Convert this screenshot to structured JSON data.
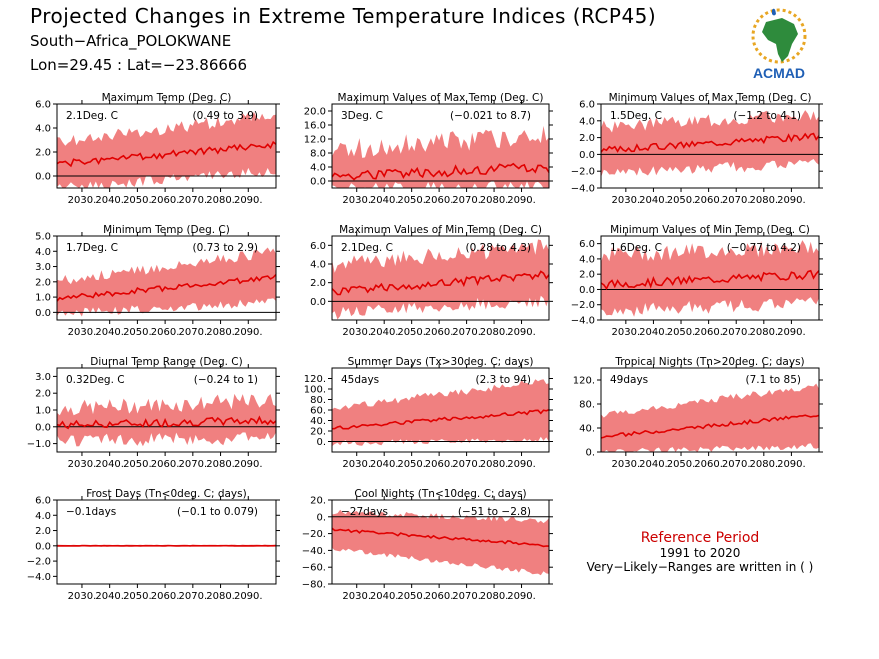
{
  "header": {
    "title": "Projected Changes in Extreme Temperature Indices (RCP45)",
    "region": "South−Africa_POLOKWANE",
    "coords": "Lon=29.45 : Lat=−23.86666",
    "logo_text": "ACMAD"
  },
  "reference": {
    "title": "Reference Period",
    "period": "1991 to 2020",
    "note": "Very−Likely−Ranges are written in ( )"
  },
  "colors": {
    "band": "#f08080",
    "line": "#e00000",
    "zero": "#000000"
  },
  "chart_data": [
    {
      "type": "area",
      "title": "Maximum Temp (Deg. C)",
      "annotation": "2.1Deg. C",
      "range": "(0.49 to 3.9)",
      "ylim": [
        -1,
        6
      ],
      "yticks": [
        0,
        2,
        4,
        6
      ],
      "ticklabels": [
        "0.0",
        "2.0",
        "4.0",
        "6.0"
      ],
      "x_start": 2021,
      "x_end": 2100,
      "xticks": [
        2030,
        2040,
        2050,
        2060,
        2070,
        2080,
        2090
      ],
      "trend": [
        1.0,
        2.6
      ],
      "low": [
        -0.6,
        0.9
      ],
      "high": [
        2.2,
        4.6
      ],
      "amp": 0.9,
      "seed": 1
    },
    {
      "type": "area",
      "title": "Maximum Values of Max Temp (Deg. C)",
      "annotation": "3Deg. C",
      "range": "(−0.021 to 8.7)",
      "ylim": [
        -2,
        22
      ],
      "yticks": [
        0,
        4,
        8,
        12,
        16,
        20
      ],
      "ticklabels": [
        "0.0",
        "4.0",
        "8.0",
        "12.0",
        "16.0",
        "20.0"
      ],
      "x_start": 2021,
      "x_end": 2100,
      "xticks": [
        2030,
        2040,
        2050,
        2060,
        2070,
        2080,
        2090
      ],
      "trend": [
        1.5,
        3.8
      ],
      "low": [
        -0.5,
        0.0
      ],
      "high": [
        6,
        10
      ],
      "amp": 5,
      "seed": 2
    },
    {
      "type": "area",
      "title": "Minimum Values of Max Temp (Deg. C)",
      "annotation": "1.5Deg. C",
      "range": "(−1.2 to 4.1)",
      "ylim": [
        -4,
        6
      ],
      "yticks": [
        -4,
        -2,
        0,
        2,
        4,
        6
      ],
      "ticklabels": [
        "−4.0",
        "−2.0",
        "0.0",
        "2.0",
        "4.0",
        "6.0"
      ],
      "x_start": 2021,
      "x_end": 2100,
      "xticks": [
        2030,
        2040,
        2050,
        2060,
        2070,
        2080,
        2090
      ],
      "trend": [
        0.5,
        2.2
      ],
      "low": [
        -1.5,
        -0.5
      ],
      "high": [
        2.5,
        4.0
      ],
      "amp": 1.3,
      "seed": 3
    },
    {
      "type": "area",
      "title": "Minimum Temp (Deg. C)",
      "annotation": "1.7Deg. C",
      "range": "(0.73 to 2.9)",
      "ylim": [
        -0.5,
        5
      ],
      "yticks": [
        0,
        1,
        2,
        3,
        4,
        5
      ],
      "ticklabels": [
        "0.0",
        "1.0",
        "2.0",
        "3.0",
        "4.0",
        "5.0"
      ],
      "x_start": 2021,
      "x_end": 2100,
      "xticks": [
        2030,
        2040,
        2050,
        2060,
        2070,
        2080,
        2090
      ],
      "trend": [
        0.9,
        2.3
      ],
      "low": [
        0.2,
        1.0
      ],
      "high": [
        1.7,
        3.6
      ],
      "amp": 0.6,
      "seed": 4
    },
    {
      "type": "area",
      "title": "Maximum Values of Min Temp (Deg. C)",
      "annotation": "2.1Deg. C",
      "range": "(0.28 to 4.3)",
      "ylim": [
        -2,
        7
      ],
      "yticks": [
        0,
        2,
        4,
        6
      ],
      "ticklabels": [
        "0.0",
        "2.0",
        "4.0",
        "6.0"
      ],
      "x_start": 2021,
      "x_end": 2100,
      "xticks": [
        2030,
        2040,
        2050,
        2060,
        2070,
        2080,
        2090
      ],
      "trend": [
        1.0,
        2.9
      ],
      "low": [
        -0.5,
        0.8
      ],
      "high": [
        3,
        5
      ],
      "amp": 1.5,
      "seed": 5
    },
    {
      "type": "area",
      "title": "Minimum Values of Min Temp (Deg. C)",
      "annotation": "1.6Deg. C",
      "range": "(−0.77 to 4.2)",
      "ylim": [
        -4,
        7
      ],
      "yticks": [
        -4,
        -2,
        0,
        2,
        4,
        6
      ],
      "ticklabels": [
        "−4.0",
        "−2.0",
        "0.0",
        "2.0",
        "4.0",
        "6.0"
      ],
      "x_start": 2021,
      "x_end": 2100,
      "xticks": [
        2030,
        2040,
        2050,
        2060,
        2070,
        2080,
        2090
      ],
      "trend": [
        0.6,
        2.0
      ],
      "low": [
        -2.0,
        -0.8
      ],
      "high": [
        3.5,
        4.5
      ],
      "amp": 1.8,
      "seed": 6
    },
    {
      "type": "area",
      "title": "Diurnal Temp Range (Deg. C)",
      "annotation": "0.32Deg. C",
      "range": "(−0.24 to 1)",
      "ylim": [
        -1.5,
        3.5
      ],
      "yticks": [
        -1,
        0,
        1,
        2,
        3
      ],
      "ticklabels": [
        "−1.0",
        "0.0",
        "1.0",
        "2.0",
        "3.0"
      ],
      "x_start": 2021,
      "x_end": 2100,
      "xticks": [
        2030,
        2040,
        2050,
        2060,
        2070,
        2080,
        2090
      ],
      "trend": [
        0.1,
        0.4
      ],
      "low": [
        -0.4,
        -0.3
      ],
      "high": [
        0.6,
        1.1
      ],
      "amp": 0.8,
      "seed": 7
    },
    {
      "type": "area",
      "title": "Summer Days (Tx>30deg. C; days)",
      "annotation": "45days",
      "range": "(2.3 to 94)",
      "ylim": [
        -20,
        140
      ],
      "yticks": [
        0,
        20,
        40,
        60,
        80,
        100,
        120
      ],
      "ticklabels": [
        "0.",
        "20.",
        "40.",
        "60.",
        "80.",
        "100.",
        "120."
      ],
      "x_start": 2021,
      "x_end": 2100,
      "xticks": [
        2030,
        2040,
        2050,
        2060,
        2070,
        2080,
        2090
      ],
      "trend": [
        25,
        58
      ],
      "low": [
        2,
        10
      ],
      "high": [
        55,
        110
      ],
      "amp": 12,
      "seed": 8
    },
    {
      "type": "area",
      "title": "Tropical Nights (Tn>20deg. C; days)",
      "annotation": "49days",
      "range": "(7.1 to 85)",
      "ylim": [
        0,
        140
      ],
      "yticks": [
        0,
        40,
        80,
        120
      ],
      "ticklabels": [
        "0.",
        "40.",
        "80.",
        "120."
      ],
      "x_start": 2021,
      "x_end": 2100,
      "xticks": [
        2030,
        2040,
        2050,
        2060,
        2070,
        2080,
        2090
      ],
      "trend": [
        25,
        62
      ],
      "low": [
        5,
        15
      ],
      "high": [
        55,
        105
      ],
      "amp": 10,
      "seed": 9
    },
    {
      "type": "area",
      "title": "Frost Days (Tn<0deg. C; days)",
      "annotation": "−0.1days",
      "range": "(−0.1 to 0.079)",
      "ylim": [
        -5,
        6
      ],
      "yticks": [
        -4,
        -2,
        0,
        2,
        4,
        6
      ],
      "ticklabels": [
        "−4.0",
        "−2.0",
        "0.0",
        "2.0",
        "4.0",
        "6.0"
      ],
      "x_start": 2021,
      "x_end": 2100,
      "xticks": [
        2030,
        2040,
        2050,
        2060,
        2070,
        2080,
        2090
      ],
      "trend": [
        0,
        0
      ],
      "low": [
        0,
        0
      ],
      "high": [
        0.1,
        0.1
      ],
      "amp": 0.05,
      "seed": 10
    },
    {
      "type": "area",
      "title": "Cool Nights (Tn<10deg. C; days)",
      "annotation": "−27days",
      "range": "(−51 to −2.8)",
      "ylim": [
        -80,
        20
      ],
      "yticks": [
        -80,
        -60,
        -40,
        -20,
        0,
        20
      ],
      "ticklabels": [
        "−80.",
        "−60.",
        "−40.",
        "−20.",
        "0.",
        "20."
      ],
      "x_start": 2021,
      "x_end": 2100,
      "xticks": [
        2030,
        2040,
        2050,
        2060,
        2070,
        2080,
        2090
      ],
      "trend": [
        -15,
        -34
      ],
      "low": [
        -35,
        -65
      ],
      "high": [
        2,
        -8
      ],
      "amp": 6,
      "seed": 11
    }
  ]
}
